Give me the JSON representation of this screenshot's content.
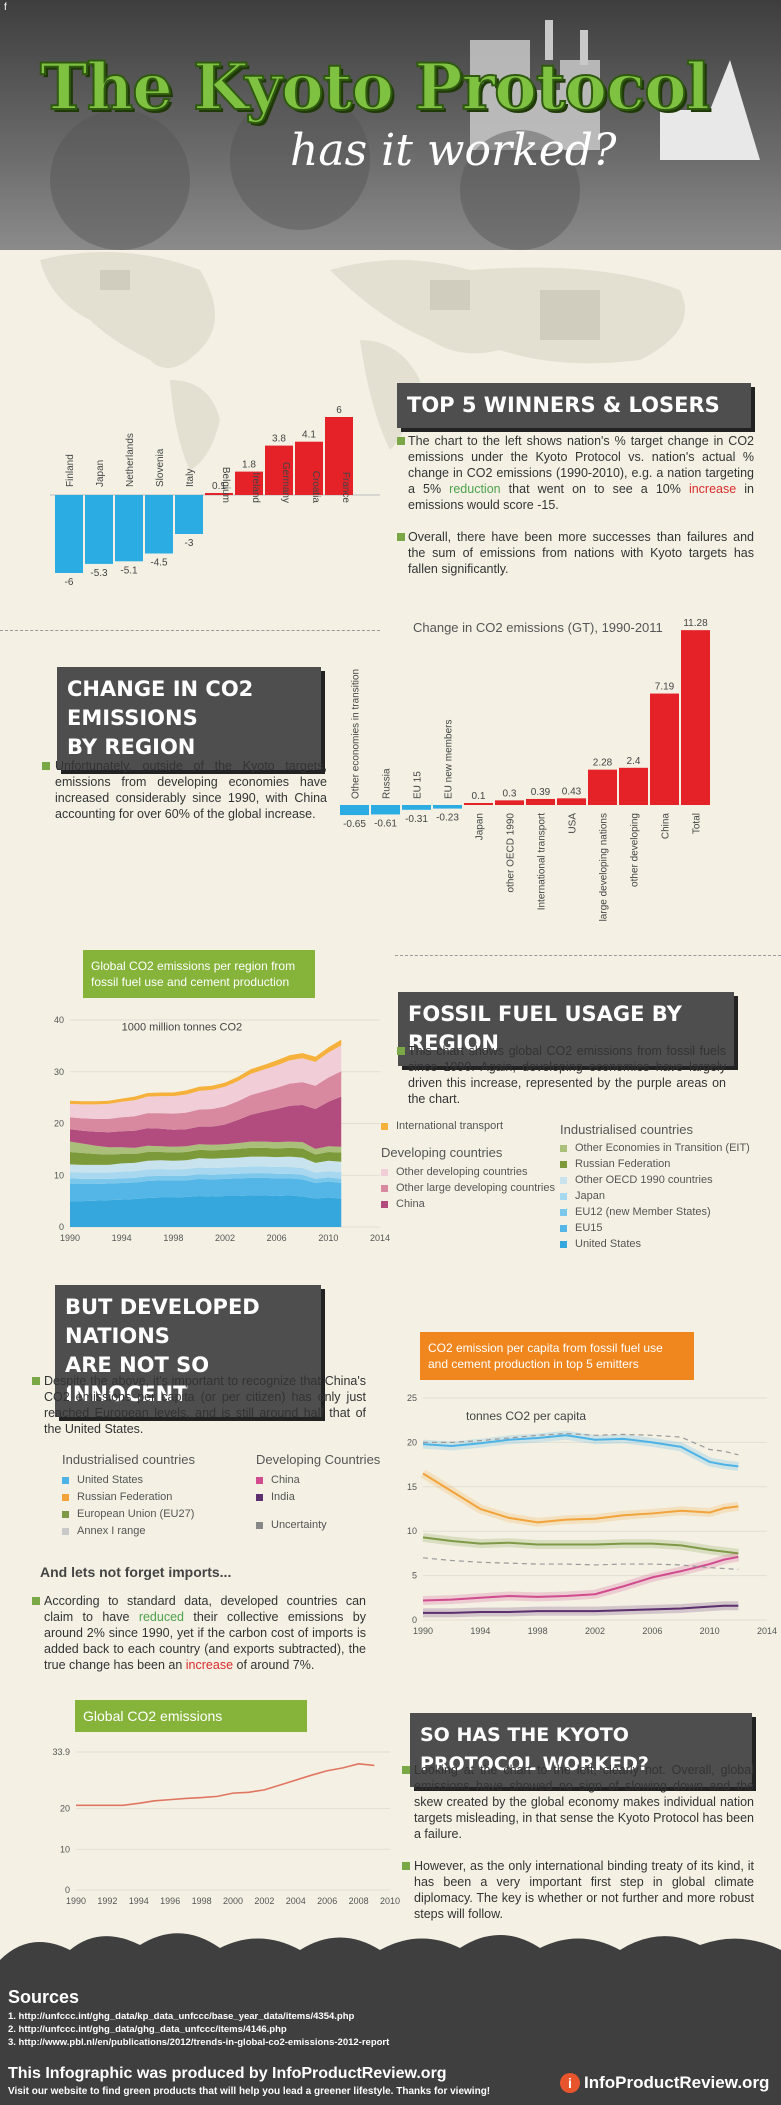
{
  "header": {
    "title": "The Kyoto Protocol",
    "subtitle": "has it worked?",
    "corner_mark": "f"
  },
  "colors": {
    "winner_blue": "#2bace2",
    "loser_red": "#e52228",
    "accent_green": "#7aa846",
    "chart_label_green": "#86b43a",
    "chart_label_orange": "#f0861e",
    "tab_dark": "#4e4e4e"
  },
  "section1": {
    "heading": "TOP 5 WINNERS & LOSERS",
    "bullet1_pre": "The chart to the left shows nation's % target change in CO2 emissions under the Kyoto Protocol vs. nation's actual % change in CO2 emissions (1990-2010), e.g. a nation targeting a 5% ",
    "bullet1_reduction": "reduction",
    "bullet1_mid": " that went on to see a 10% ",
    "bullet1_increase": "increase",
    "bullet1_post": " in emissions would score -15.",
    "bullet2": "Overall, there have been more successes than failures and the sum of emissions from nations with Kyoto targets has fallen significantly."
  },
  "section2": {
    "heading_line1": "CHANGE IN CO2 EMISSIONS",
    "heading_line2": "BY REGION",
    "bullet": "Unfortunately, outside of the Kyoto targets, emissions from developing economies have increased considerably since 1990, with China accounting for over 60% of the global increase."
  },
  "section3": {
    "heading": "FOSSIL FUEL USAGE BY REGION",
    "bullet": "This chart shows global CO2 emissions from fossil fuels since 1990. Again, developing economies have largely driven this increase, represented by the purple areas on the chart."
  },
  "section4": {
    "heading_line1": "BUT DEVELOPED NATIONS",
    "heading_line2": "ARE NOT SO INNOCENT",
    "bullet": "Despite the above, it's important to recognize that China's CO2 emissions per capita (or per citizen) has only just reached European levels, and is still around half that of the United States.",
    "imports_heading": "And lets not forget imports...",
    "imports_pre": "According to standard data, developed countries can claim to have ",
    "imports_reduced": "reduced",
    "imports_mid": " their collective emissions by around 2% since 1990, yet if the carbon cost of imports is added back to each country (and exports subtracted), the true change has been an ",
    "imports_increase": "increase",
    "imports_post": " of around 7%."
  },
  "section5": {
    "heading": "SO HAS THE KYOTO PROTOCOL WORKED?",
    "bullet1": "Looking at the chart to the left, clearly not. Overall, global emissions have showed no sign of slowing down and the skew created by the global economy makes individual nation targets misleading, in that sense the Kyoto Protocol has been a failure.",
    "bullet2": "However, as the only international binding treaty of its kind, it has been a very important first step in global climate diplomacy. The key is whether or not further and more robust steps will follow."
  },
  "footer": {
    "sources_heading": "Sources",
    "sources": [
      "1. http://unfccc.int/ghg_data/kp_data_unfccc/base_year_data/items/4354.php",
      "2. http://unfccc.int/ghg_data/ghg_data_unfccc/items/4146.php",
      "3. http://www.pbl.nl/en/publications/2012/trends-in-global-co2-emissions-2012-report"
    ],
    "produced_by": "This Infographic was produced by InfoProductReview.org",
    "visit": "Visit our website to find green products that will help you lead a greener lifestyle. Thanks for viewing!",
    "logo_text": "InfoProductReview.org",
    "logo_letter": "i"
  },
  "chart_data": [
    {
      "type": "bar",
      "categories": [
        "Finland",
        "Japan",
        "Netherlands",
        "Slovenia",
        "Italy",
        "Belgium",
        "Ireland",
        "Germany",
        "Croatia",
        "France"
      ],
      "values": [
        -6,
        -5.3,
        -5.1,
        -4.5,
        -3,
        0.1,
        1.8,
        3.8,
        4.1,
        6
      ],
      "value_labels": [
        "-6",
        "-5.3",
        "-5.1",
        "-4.5",
        "-3",
        "0.1",
        "1.8",
        "3.8",
        "4.1",
        "6"
      ],
      "title": "",
      "xlabel": "",
      "ylabel": ""
    },
    {
      "type": "bar",
      "title": "Change in CO2 emissions (GT), 1990-2011",
      "categories": [
        "Other economies in transition",
        "Russia",
        "EU 15",
        "EU new members",
        "Japan",
        "other OECD 1990",
        "International transport",
        "USA",
        "large developing nations",
        "other developing",
        "China",
        "Total"
      ],
      "values": [
        -0.65,
        -0.61,
        -0.31,
        -0.23,
        0.1,
        0.3,
        0.39,
        0.43,
        2.28,
        2.4,
        7.19,
        11.28
      ],
      "value_labels": [
        "-0.65",
        "-0.61",
        "-0.31",
        "-0.23",
        "0.1",
        "0.3",
        "0.39",
        "0.43",
        "2.28",
        "2.4",
        "7.19",
        "11.28"
      ],
      "xlabel": "",
      "ylabel": ""
    },
    {
      "type": "area",
      "title": "Global CO2 emissions per region from fossil fuel use and cement production",
      "unit_label": "1000 million tonnes CO2",
      "x": [
        1990,
        1991,
        1992,
        1993,
        1994,
        1995,
        1996,
        1997,
        1998,
        1999,
        2000,
        2001,
        2002,
        2003,
        2004,
        2005,
        2006,
        2007,
        2008,
        2009,
        2010,
        2011
      ],
      "x_ticks": [
        "1990",
        "1994",
        "1998",
        "2002",
        "2006",
        "2010",
        "2014"
      ],
      "y_ticks": [
        "0",
        "10",
        "20",
        "30",
        "40"
      ],
      "ylim": [
        0,
        40
      ],
      "series": [
        {
          "name": "United States",
          "color": "#35a7dd",
          "values": [
            5.0,
            5.0,
            5.1,
            5.2,
            5.3,
            5.4,
            5.6,
            5.7,
            5.7,
            5.8,
            6.0,
            5.9,
            6.0,
            6.0,
            6.1,
            6.1,
            6.0,
            6.1,
            5.9,
            5.5,
            5.7,
            5.5
          ]
        },
        {
          "name": "EU15",
          "color": "#53b6e6",
          "values": [
            3.3,
            3.3,
            3.2,
            3.2,
            3.2,
            3.2,
            3.3,
            3.3,
            3.3,
            3.2,
            3.3,
            3.3,
            3.3,
            3.4,
            3.4,
            3.4,
            3.4,
            3.3,
            3.3,
            3.0,
            3.1,
            3.0
          ]
        },
        {
          "name": "EU12 (new Member States)",
          "color": "#7cc7ec",
          "values": [
            1.1,
            1.0,
            1.0,
            0.9,
            0.9,
            0.9,
            0.9,
            0.9,
            0.9,
            0.9,
            0.9,
            0.9,
            0.9,
            0.9,
            0.9,
            0.9,
            0.9,
            0.9,
            0.9,
            0.8,
            0.8,
            0.8
          ]
        },
        {
          "name": "Japan",
          "color": "#a8d8f0",
          "values": [
            1.2,
            1.2,
            1.2,
            1.2,
            1.3,
            1.3,
            1.3,
            1.3,
            1.2,
            1.3,
            1.3,
            1.3,
            1.3,
            1.3,
            1.3,
            1.3,
            1.3,
            1.3,
            1.3,
            1.2,
            1.2,
            1.3
          ]
        },
        {
          "name": "Other OECD 1990 countries",
          "color": "#c8e3ee",
          "values": [
            1.5,
            1.5,
            1.5,
            1.5,
            1.6,
            1.6,
            1.7,
            1.7,
            1.7,
            1.7,
            1.8,
            1.8,
            1.8,
            1.8,
            1.9,
            1.9,
            1.9,
            2.0,
            2.0,
            1.9,
            2.0,
            2.0
          ]
        },
        {
          "name": "Russian Federation",
          "color": "#7c9a3a",
          "values": [
            2.4,
            2.3,
            2.1,
            2.0,
            1.8,
            1.7,
            1.7,
            1.6,
            1.6,
            1.6,
            1.6,
            1.6,
            1.6,
            1.7,
            1.7,
            1.7,
            1.7,
            1.7,
            1.8,
            1.6,
            1.7,
            1.8
          ]
        },
        {
          "name": "Other Economies in Transition (EIT)",
          "color": "#a9bf7a",
          "values": [
            2.0,
            1.8,
            1.6,
            1.4,
            1.3,
            1.2,
            1.2,
            1.1,
            1.1,
            1.1,
            1.1,
            1.1,
            1.1,
            1.1,
            1.2,
            1.2,
            1.2,
            1.2,
            1.2,
            1.1,
            1.1,
            1.1
          ]
        },
        {
          "name": "China",
          "color": "#b24c7e",
          "values": [
            2.4,
            2.5,
            2.7,
            2.9,
            3.1,
            3.3,
            3.4,
            3.4,
            3.3,
            3.3,
            3.4,
            3.5,
            3.8,
            4.5,
            5.2,
            5.8,
            6.4,
            6.9,
            7.2,
            7.7,
            8.6,
            9.7
          ]
        },
        {
          "name": "Other large developing countries",
          "color": "#d8899f",
          "values": [
            2.3,
            2.4,
            2.5,
            2.6,
            2.7,
            2.8,
            2.9,
            3.0,
            3.1,
            3.2,
            3.3,
            3.4,
            3.5,
            3.6,
            3.8,
            3.9,
            4.1,
            4.3,
            4.4,
            4.5,
            4.7,
            4.9
          ]
        },
        {
          "name": "Other developing countries",
          "color": "#f1cdd8",
          "values": [
            2.6,
            2.7,
            2.8,
            2.9,
            3.0,
            3.1,
            3.2,
            3.3,
            3.4,
            3.5,
            3.6,
            3.7,
            3.8,
            3.9,
            4.1,
            4.2,
            4.3,
            4.5,
            4.6,
            4.6,
            4.8,
            5.0
          ]
        },
        {
          "name": "International transport",
          "color": "#f5b13c",
          "values": [
            0.6,
            0.6,
            0.6,
            0.6,
            0.6,
            0.7,
            0.7,
            0.7,
            0.7,
            0.8,
            0.8,
            0.8,
            0.8,
            0.8,
            0.9,
            0.9,
            1.0,
            1.0,
            1.0,
            1.0,
            1.0,
            1.1
          ]
        }
      ],
      "legend_groups": {
        "international": "International transport",
        "developing_heading": "Developing countries",
        "industrialised_heading": "Industrialised countries"
      }
    },
    {
      "type": "line",
      "title": "CO2 emission per capita from fossil fuel use and cement production in top 5 emitters",
      "unit_label": "tonnes CO2 per capita",
      "x": [
        1990,
        1992,
        1994,
        1996,
        1998,
        2000,
        2002,
        2004,
        2006,
        2008,
        2010,
        2011,
        2012
      ],
      "x_ticks": [
        "1990",
        "1994",
        "1998",
        "2002",
        "2006",
        "2010",
        "2014"
      ],
      "y_ticks": [
        "0",
        "5",
        "10",
        "15",
        "20",
        "25"
      ],
      "ylim": [
        0,
        25
      ],
      "series": [
        {
          "name": "United States",
          "color": "#4db3e6",
          "values": [
            19.8,
            19.6,
            19.9,
            20.3,
            20.5,
            20.8,
            20.3,
            20.4,
            20.0,
            19.5,
            17.8,
            17.5,
            17.3
          ]
        },
        {
          "name": "Russian Federation",
          "color": "#f2a33a",
          "values": [
            16.5,
            14.5,
            12.5,
            11.5,
            11.0,
            11.3,
            11.4,
            11.8,
            12.0,
            12.3,
            12.1,
            12.6,
            12.8
          ]
        },
        {
          "name": "European Union (EU27)",
          "color": "#7f9a46",
          "values": [
            9.3,
            8.9,
            8.6,
            8.7,
            8.5,
            8.5,
            8.5,
            8.6,
            8.6,
            8.4,
            7.9,
            7.7,
            7.5
          ]
        },
        {
          "name": "China",
          "color": "#d14b8f",
          "values": [
            2.2,
            2.3,
            2.5,
            2.7,
            2.6,
            2.7,
            2.9,
            3.8,
            4.8,
            5.5,
            6.3,
            6.8,
            7.1
          ]
        },
        {
          "name": "India",
          "color": "#5c2f6e",
          "values": [
            0.8,
            0.8,
            0.9,
            0.9,
            1.0,
            1.0,
            1.0,
            1.1,
            1.2,
            1.3,
            1.5,
            1.6,
            1.6
          ]
        },
        {
          "name": "Annex I range",
          "color": "#9a9a9a",
          "dashed": true,
          "values": [
            7.0,
            6.7,
            6.5,
            6.4,
            6.3,
            6.3,
            6.2,
            6.3,
            6.3,
            6.2,
            5.9,
            5.8,
            5.7
          ]
        },
        {
          "name": "Annex I range upper",
          "color": "#9a9a9a",
          "dashed": true,
          "values": [
            20.0,
            20.0,
            20.2,
            20.5,
            20.8,
            21.0,
            20.8,
            20.9,
            20.8,
            20.6,
            19.2,
            19.0,
            18.6
          ]
        }
      ],
      "legend_groups": {
        "industrialised_heading": "Industrialised countries",
        "developing_heading": "Developing Countries",
        "uncertainty": "Uncertainty"
      }
    },
    {
      "type": "line",
      "title": "Global CO2 emissions",
      "x": [
        1990,
        1991,
        1992,
        1993,
        1994,
        1995,
        1996,
        1997,
        1998,
        1999,
        2000,
        2001,
        2002,
        2003,
        2004,
        2005,
        2006,
        2007,
        2008,
        2009
      ],
      "x_ticks": [
        "1990",
        "1992",
        "1994",
        "1996",
        "1998",
        "2000",
        "2002",
        "2004",
        "2006",
        "2008",
        "2010"
      ],
      "y_ticks": [
        "0",
        "10",
        "20",
        "33.9"
      ],
      "ylim": [
        0,
        33.9
      ],
      "series": [
        {
          "name": "Global CO2 emissions",
          "color": "#e07560",
          "values": [
            20.8,
            20.8,
            20.8,
            20.8,
            21.3,
            21.9,
            22.2,
            22.5,
            22.7,
            23.0,
            23.8,
            24.0,
            24.6,
            25.8,
            27.0,
            28.2,
            29.3,
            30.0,
            31.0,
            30.6
          ]
        }
      ]
    }
  ]
}
